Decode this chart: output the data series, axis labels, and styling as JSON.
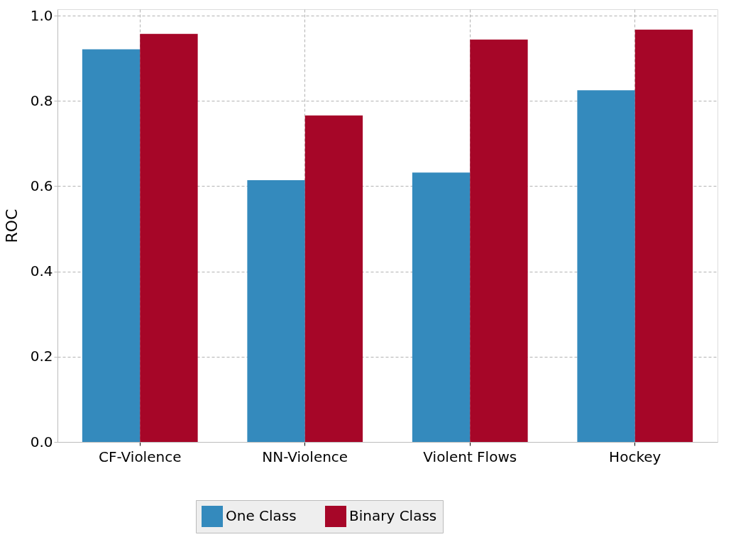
{
  "chart_data": {
    "type": "bar",
    "ylabel": "ROC",
    "categories": [
      "CF-Violence",
      "NN-Violence",
      "Violent Flows",
      "Hockey"
    ],
    "series": [
      {
        "name": "One Class",
        "color": "#348abd",
        "values": [
          0.921,
          0.614,
          0.632,
          0.825
        ]
      },
      {
        "name": "Binary Class",
        "color": "#a60628",
        "values": [
          0.957,
          0.766,
          0.944,
          0.967
        ]
      }
    ],
    "ylim": [
      0,
      1.015
    ],
    "yticks": [
      {
        "value": 0,
        "label": "0.0"
      },
      0.2,
      0.4,
      0.6,
      0.8,
      {
        "value": 1,
        "label": "1.0"
      }
    ],
    "grid": true,
    "legend": "bottom"
  }
}
